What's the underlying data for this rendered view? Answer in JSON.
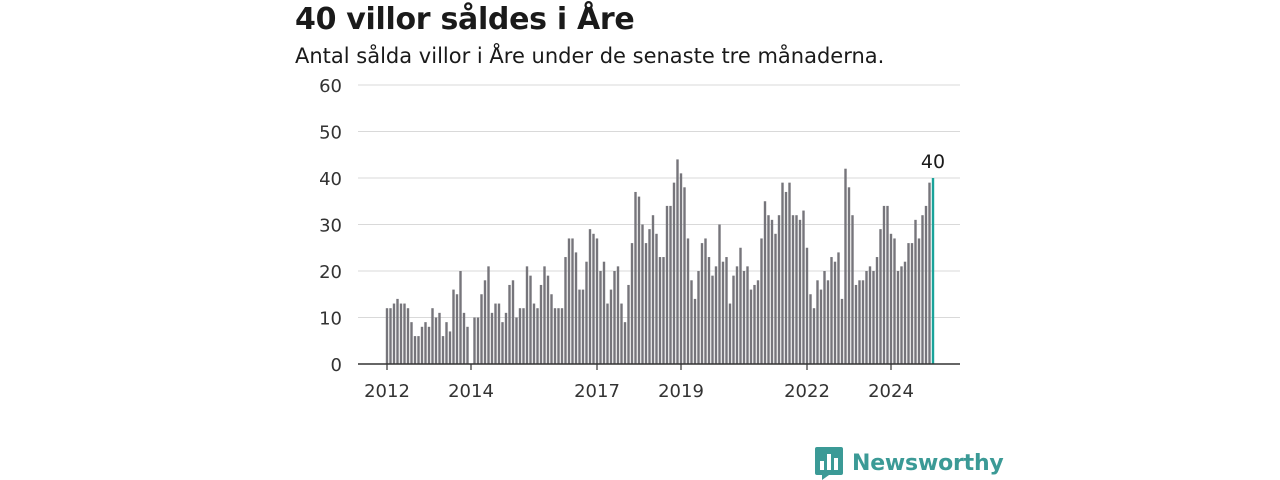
{
  "title": "40 villor såldes i Åre",
  "subtitle": "Antal sålda villor i Åre under de senaste tre månaderna.",
  "brand": "Newsworthy",
  "colors": {
    "bar": "#76757b",
    "highlight": "#1aa39a",
    "grid": "#d9d9d9",
    "axis": "#333333",
    "brand": "#3b9a96"
  },
  "chart_data": {
    "type": "bar",
    "x_ticks": [
      "2012",
      "2014",
      "2017",
      "2019",
      "2022",
      "2024"
    ],
    "ylim": [
      0,
      60
    ],
    "y_ticks": [
      0,
      10,
      20,
      30,
      40,
      50,
      60
    ],
    "values": [
      12,
      12,
      13,
      14,
      13,
      13,
      12,
      9,
      6,
      6,
      8,
      9,
      8,
      12,
      10,
      11,
      6,
      9,
      7,
      16,
      15,
      20,
      11,
      8,
      0,
      10,
      10,
      15,
      18,
      21,
      11,
      13,
      13,
      9,
      11,
      17,
      18,
      10,
      12,
      12,
      21,
      19,
      13,
      12,
      17,
      21,
      19,
      15,
      12,
      12,
      12,
      23,
      27,
      27,
      24,
      16,
      16,
      22,
      29,
      28,
      27,
      20,
      22,
      13,
      16,
      20,
      21,
      13,
      9,
      17,
      26,
      37,
      36,
      30,
      26,
      29,
      32,
      28,
      23,
      23,
      34,
      34,
      39,
      44,
      41,
      38,
      27,
      18,
      14,
      20,
      26,
      27,
      23,
      19,
      21,
      30,
      22,
      23,
      13,
      19,
      21,
      25,
      20,
      21,
      16,
      17,
      18,
      27,
      35,
      32,
      31,
      28,
      32,
      39,
      37,
      39,
      32,
      32,
      31,
      33,
      25,
      15,
      12,
      18,
      16,
      20,
      18,
      23,
      22,
      24,
      14,
      42,
      38,
      32,
      17,
      18,
      18,
      20,
      21,
      20,
      23,
      29,
      34,
      34,
      28,
      27,
      20,
      21,
      22,
      26,
      26,
      31,
      27,
      32,
      34,
      39,
      40
    ],
    "highlight_last": true,
    "last_label": "40",
    "grid": true
  }
}
